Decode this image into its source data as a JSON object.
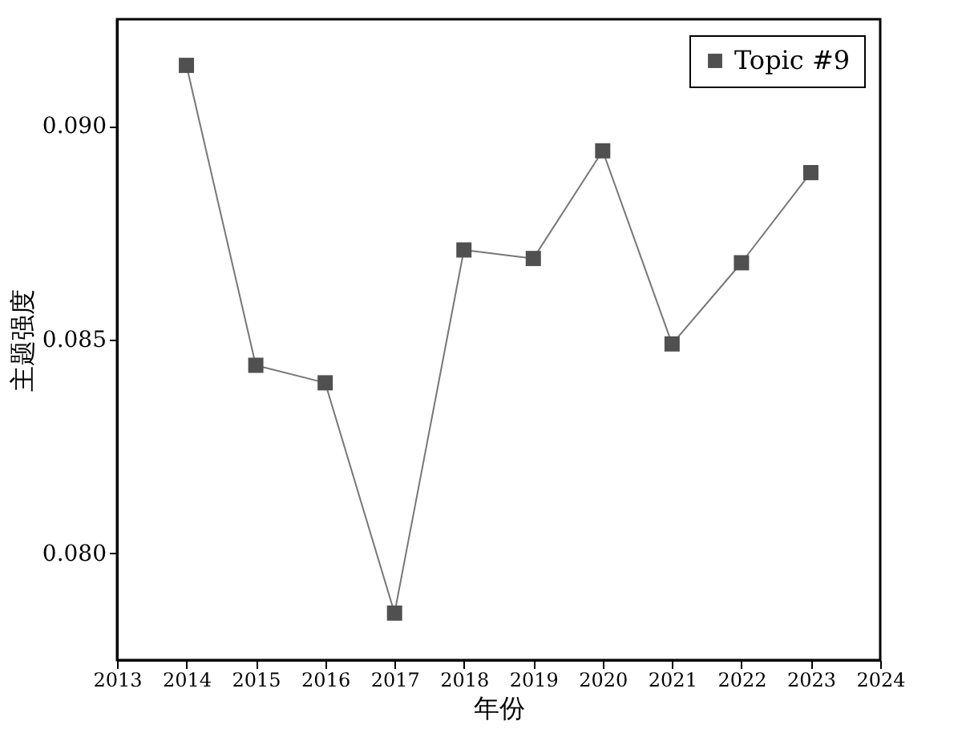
{
  "chart_data": {
    "type": "line",
    "xlabel": "年份",
    "ylabel": "主题强度",
    "x": [
      2014,
      2015,
      2016,
      2017,
      2018,
      2019,
      2020,
      2021,
      2022,
      2023
    ],
    "series": [
      {
        "name": "Topic #9",
        "color": "#505050",
        "values": [
          0.09142,
          0.0844,
          0.08399,
          0.0786,
          0.0871,
          0.0869,
          0.08942,
          0.0849,
          0.0868,
          0.08891
        ]
      }
    ],
    "xlim": [
      2013,
      2024
    ],
    "xticks": [
      2013,
      2014,
      2015,
      2016,
      2017,
      2018,
      2019,
      2020,
      2021,
      2022,
      2023,
      2024
    ],
    "ylim": [
      0.0775,
      0.0925
    ],
    "yticks": [
      {
        "value": 0.08,
        "label": "0.080"
      },
      {
        "value": 0.085,
        "label": "0.085"
      },
      {
        "value": 0.09,
        "label": "0.090"
      }
    ],
    "grid": false,
    "legend": "top right",
    "marker": "square",
    "line_style": "solid"
  }
}
